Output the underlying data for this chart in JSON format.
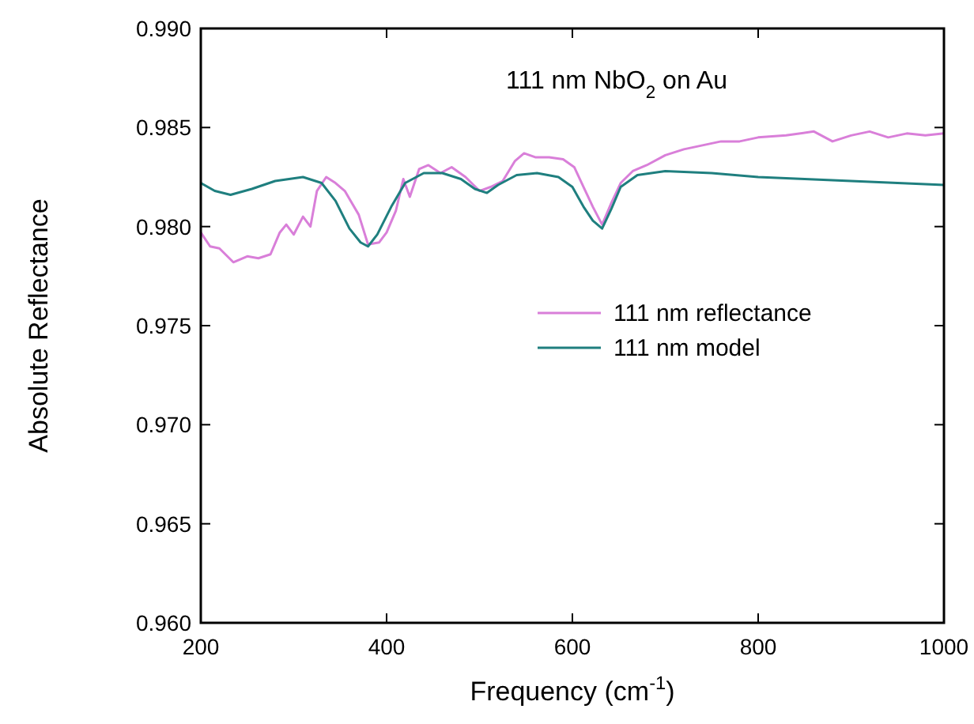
{
  "chart_data": {
    "type": "line",
    "title": "111 nm NbO$_{2}$ on Au",
    "xlabel": "Frequency (cm$^{-1}$)",
    "ylabel": "Absolute Reflectance",
    "xlim": [
      200,
      1000
    ],
    "xticks": [
      200,
      400,
      600,
      800,
      1000
    ],
    "ylim": [
      0.96,
      0.99
    ],
    "yticks": [
      {
        "value": 0.96,
        "label": "0.960"
      },
      {
        "value": 0.965,
        "label": "0.965"
      },
      {
        "value": 0.97,
        "label": "0.970"
      },
      {
        "value": 0.975,
        "label": "0.975"
      },
      {
        "value": 0.98,
        "label": "0.980"
      },
      {
        "value": 0.985,
        "label": "0.985"
      },
      {
        "value": 0.99,
        "label": "0.990"
      }
    ],
    "grid": false,
    "legend": "right",
    "marker": "none",
    "line_style": "solid",
    "series": [
      {
        "name": "111 nm reflectance",
        "color": "#d97fd9",
        "x": [
          200,
          210,
          220,
          235,
          250,
          262,
          275,
          285,
          292,
          300,
          310,
          318,
          325,
          335,
          345,
          355,
          370,
          380,
          392,
          400,
          410,
          418,
          425,
          435,
          445,
          458,
          470,
          485,
          500,
          512,
          525,
          538,
          548,
          560,
          575,
          590,
          602,
          612,
          622,
          632,
          642,
          652,
          665,
          680,
          700,
          720,
          740,
          760,
          780,
          800,
          830,
          860,
          880,
          900,
          920,
          940,
          960,
          980,
          1000
        ],
        "values": [
          0.9797,
          0.979,
          0.9789,
          0.9782,
          0.9785,
          0.9784,
          0.9786,
          0.9797,
          0.9801,
          0.9796,
          0.9805,
          0.98,
          0.9818,
          0.9825,
          0.9822,
          0.9818,
          0.9806,
          0.9791,
          0.9792,
          0.9797,
          0.9808,
          0.9824,
          0.9815,
          0.9829,
          0.9831,
          0.9827,
          0.983,
          0.9825,
          0.9818,
          0.982,
          0.9823,
          0.9833,
          0.9837,
          0.9835,
          0.9835,
          0.9834,
          0.983,
          0.982,
          0.981,
          0.9801,
          0.9812,
          0.9822,
          0.9828,
          0.9831,
          0.9836,
          0.9839,
          0.9841,
          0.9843,
          0.9843,
          0.9845,
          0.9846,
          0.9848,
          0.9843,
          0.9846,
          0.9848,
          0.9845,
          0.9847,
          0.9846,
          0.9847
        ]
      },
      {
        "name": "111 nm model",
        "color": "#1f7f7f",
        "x": [
          200,
          215,
          232,
          255,
          280,
          310,
          330,
          345,
          360,
          372,
          380,
          390,
          405,
          420,
          440,
          460,
          480,
          495,
          508,
          520,
          540,
          562,
          585,
          600,
          612,
          622,
          632,
          642,
          652,
          670,
          700,
          750,
          800,
          850,
          900,
          950,
          1000
        ],
        "values": [
          0.9822,
          0.9818,
          0.9816,
          0.9819,
          0.9823,
          0.9825,
          0.9822,
          0.9813,
          0.9799,
          0.9792,
          0.979,
          0.9796,
          0.981,
          0.9822,
          0.9827,
          0.9827,
          0.9824,
          0.9819,
          0.9817,
          0.9821,
          0.9826,
          0.9827,
          0.9825,
          0.982,
          0.981,
          0.9803,
          0.9799,
          0.9809,
          0.982,
          0.9826,
          0.9828,
          0.9827,
          0.9825,
          0.9824,
          0.9823,
          0.9822,
          0.9821
        ]
      }
    ]
  }
}
